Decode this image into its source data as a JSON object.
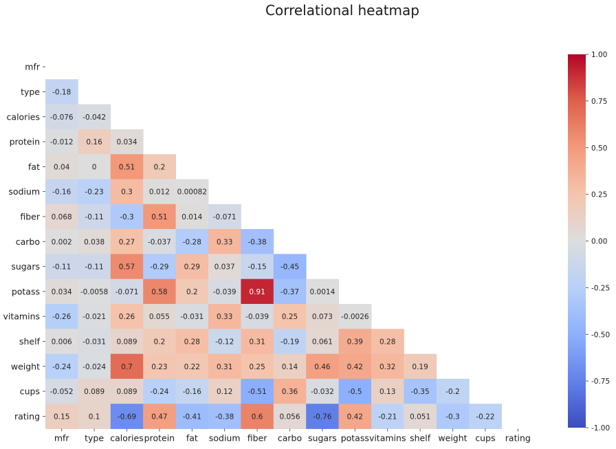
{
  "chart_data": {
    "type": "heatmap",
    "title": "Correlational heatmap",
    "variables": [
      "mfr",
      "type",
      "calories",
      "protein",
      "fat",
      "sodium",
      "fiber",
      "carbo",
      "sugars",
      "potass",
      "vitamins",
      "shelf",
      "weight",
      "cups",
      "rating"
    ],
    "mask": "upper-triangle-including-diagonal",
    "lower_triangle_values": [
      [],
      [
        -0.18
      ],
      [
        -0.076,
        -0.042
      ],
      [
        -0.012,
        0.16,
        0.034
      ],
      [
        0.04,
        0,
        0.51,
        0.2
      ],
      [
        -0.16,
        -0.23,
        0.3,
        0.012,
        0.00082
      ],
      [
        0.068,
        -0.11,
        -0.3,
        0.51,
        0.014,
        -0.071
      ],
      [
        0.002,
        0.038,
        0.27,
        -0.037,
        -0.28,
        0.33,
        -0.38
      ],
      [
        -0.11,
        -0.11,
        0.57,
        -0.29,
        0.29,
        0.037,
        -0.15,
        -0.45
      ],
      [
        0.034,
        -0.0058,
        -0.071,
        0.58,
        0.2,
        -0.039,
        0.91,
        -0.37,
        0.0014
      ],
      [
        -0.26,
        -0.021,
        0.26,
        0.055,
        -0.031,
        0.33,
        -0.039,
        0.25,
        0.073,
        -0.0026
      ],
      [
        0.006,
        -0.031,
        0.089,
        0.2,
        0.28,
        -0.12,
        0.31,
        -0.19,
        0.061,
        0.39,
        0.28
      ],
      [
        -0.24,
        -0.024,
        0.7,
        0.23,
        0.22,
        0.31,
        0.25,
        0.14,
        0.46,
        0.42,
        0.32,
        0.19
      ],
      [
        -0.052,
        0.089,
        0.089,
        -0.24,
        -0.16,
        0.12,
        -0.51,
        0.36,
        -0.032,
        -0.5,
        0.13,
        -0.35,
        -0.2
      ],
      [
        0.15,
        0.1,
        -0.69,
        0.47,
        -0.41,
        -0.38,
        0.6,
        0.056,
        -0.76,
        0.42,
        -0.21,
        0.051,
        -0.3,
        -0.22
      ]
    ],
    "colormap": "coolwarm",
    "vmin": -1.0,
    "vmax": 1.0,
    "colorbar_ticks": [
      "1.00",
      "0.75",
      "0.50",
      "0.25",
      "0.00",
      "-0.25",
      "-0.50",
      "-0.75",
      "-1.00"
    ],
    "colorbar_tick_values": [
      1.0,
      0.75,
      0.5,
      0.25,
      0.0,
      -0.25,
      -0.5,
      -0.75,
      -1.0
    ],
    "colorbar_position": "right",
    "grid": false
  }
}
